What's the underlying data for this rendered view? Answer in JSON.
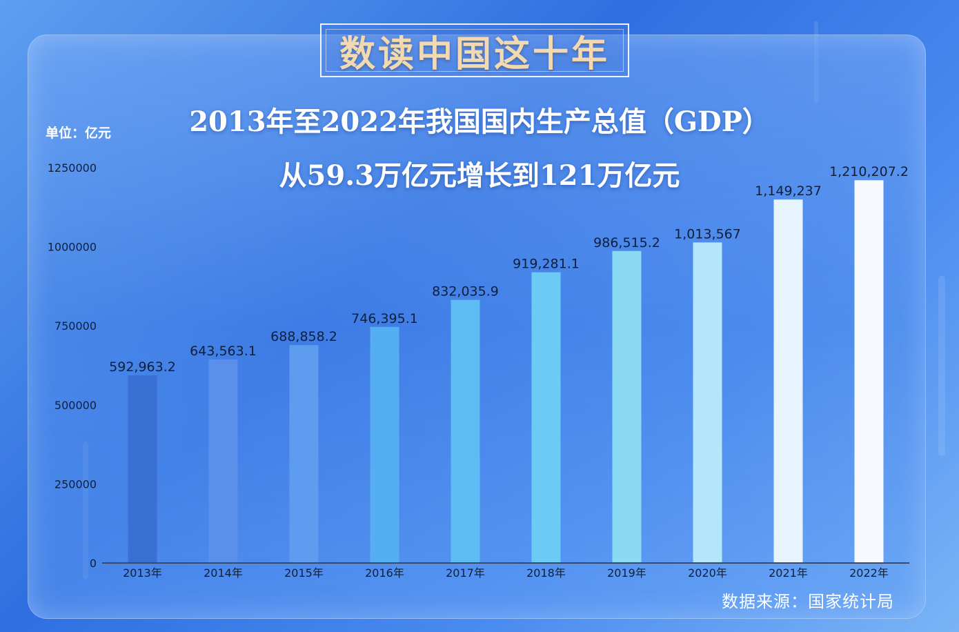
{
  "header": {
    "badge_title": "数读中国这十年",
    "headline_line1": "2013年至2022年我国国内生产总值（GDP）",
    "headline_line2": "从59.3万亿元增长到121万亿元"
  },
  "unit_label": "单位：亿元",
  "source": "数据来源：国家统计局",
  "chart_data": {
    "type": "bar",
    "title": "2013年至2022年我国国内生产总值（GDP）从59.3万亿元增长到121万亿元",
    "ylabel": "单位：亿元",
    "xlabel": "",
    "ylim": [
      0,
      1250000
    ],
    "yticks": [
      0,
      250000,
      500000,
      750000,
      1000000,
      1250000
    ],
    "ytick_labels": [
      "0",
      "250000",
      "500000",
      "750000",
      "1000000",
      "1250000"
    ],
    "categories": [
      "2013年",
      "2014年",
      "2015年",
      "2016年",
      "2017年",
      "2018年",
      "2019年",
      "2020年",
      "2021年",
      "2022年"
    ],
    "values": [
      592963.2,
      643563.1,
      688858.2,
      746395.1,
      832035.9,
      919281.1,
      986515.2,
      1013567,
      1149237,
      1210207.2
    ],
    "value_labels": [
      "592,963.2",
      "643,563.1",
      "688,858.2",
      "746,395.1",
      "832,035.9",
      "919,281.1",
      "986,515.2",
      "1,013,567",
      "1,149,237",
      "1,210,207.2"
    ],
    "colors": [
      "#3a6fd4",
      "#5b8fea",
      "#5e9cf0",
      "#56aef2",
      "#5dbcf4",
      "#6ccaf4",
      "#8adaf6",
      "#b4e6fa",
      "#e6f4fd",
      "#f6faff"
    ],
    "grid": false,
    "legend": "none"
  }
}
